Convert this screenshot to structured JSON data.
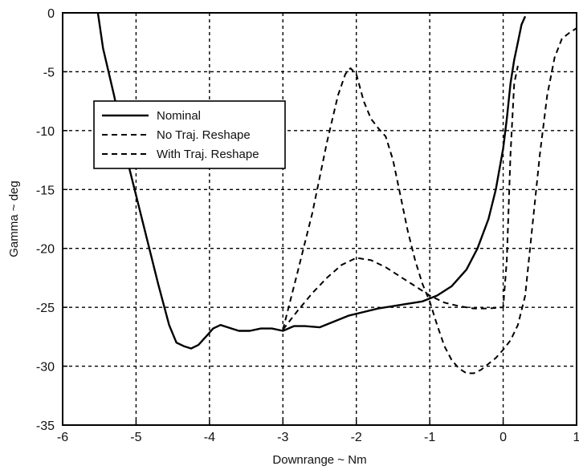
{
  "chart_data": {
    "type": "line",
    "title": "",
    "xlabel": "Downrange ~ Nm",
    "ylabel": "Gamma ~ deg",
    "xlim": [
      -6,
      1
    ],
    "ylim": [
      -35,
      0
    ],
    "xticks": [
      -6,
      -5,
      -4,
      -3,
      -2,
      -1,
      0,
      1
    ],
    "yticks": [
      0,
      -5,
      -10,
      -15,
      -20,
      -25,
      -30,
      -35
    ],
    "grid": true,
    "legend_position": "upper-left",
    "series": [
      {
        "name": "Nominal",
        "style": "solid",
        "x": [
          -5.52,
          -5.45,
          -5.3,
          -5.1,
          -4.9,
          -4.7,
          -4.55,
          -4.45,
          -4.35,
          -4.25,
          -4.15,
          -4.05,
          -3.95,
          -3.85,
          -3.75,
          -3.6,
          -3.45,
          -3.3,
          -3.15,
          -3.0,
          -2.85,
          -2.7,
          -2.5,
          -2.3,
          -2.1,
          -1.9,
          -1.7,
          -1.5,
          -1.3,
          -1.1,
          -0.9,
          -0.7,
          -0.5,
          -0.35,
          -0.2,
          -0.1,
          0.0,
          0.05,
          0.1,
          0.15,
          0.2,
          0.25,
          0.3
        ],
        "y": [
          0,
          -3,
          -7,
          -13,
          -18,
          -23,
          -26.5,
          -28,
          -28.3,
          -28.5,
          -28.2,
          -27.5,
          -26.8,
          -26.5,
          -26.7,
          -27.0,
          -27.0,
          -26.8,
          -26.8,
          -27.0,
          -26.6,
          -26.6,
          -26.7,
          -26.2,
          -25.7,
          -25.4,
          -25.1,
          -24.9,
          -24.7,
          -24.5,
          -24.0,
          -23.2,
          -21.8,
          -20.0,
          -17.5,
          -15.0,
          -11.5,
          -9.0,
          -6.0,
          -4.0,
          -2.5,
          -1.0,
          -0.3
        ]
      },
      {
        "name": "No Traj. Reshape",
        "style": "dashed",
        "x": [
          -3.0,
          -2.8,
          -2.6,
          -2.4,
          -2.2,
          -2.0,
          -1.8,
          -1.6,
          -1.4,
          -1.2,
          -1.0,
          -0.8,
          -0.6,
          -0.4,
          -0.2,
          0.0,
          0.05,
          0.1,
          0.15,
          0.2
        ],
        "y": [
          -26.9,
          -25.3,
          -23.8,
          -22.5,
          -21.4,
          -20.8,
          -21.0,
          -21.6,
          -22.4,
          -23.2,
          -24.0,
          -24.6,
          -24.9,
          -25.1,
          -25.1,
          -25.0,
          -21.0,
          -12.0,
          -6.0,
          -4.5
        ]
      },
      {
        "name": "With Traj. Reshape",
        "style": "dashed",
        "x": [
          -3.0,
          -2.8,
          -2.6,
          -2.4,
          -2.25,
          -2.15,
          -2.08,
          -2.0,
          -1.9,
          -1.8,
          -1.7,
          -1.6,
          -1.5,
          -1.4,
          -1.3,
          -1.2,
          -1.1,
          -1.0,
          -0.9,
          -0.8,
          -0.7,
          -0.6,
          -0.5,
          -0.4,
          -0.3,
          -0.2,
          -0.1,
          0.0,
          0.1,
          0.2,
          0.3,
          0.4,
          0.5,
          0.6,
          0.7,
          0.8,
          0.9,
          1.0
        ],
        "y": [
          -26.9,
          -22.0,
          -17.0,
          -11.0,
          -7.0,
          -5.2,
          -4.7,
          -5.2,
          -7.5,
          -9.0,
          -9.8,
          -10.5,
          -12.5,
          -15.5,
          -18.5,
          -21.0,
          -23.0,
          -24.5,
          -26.5,
          -28.3,
          -29.5,
          -30.2,
          -30.6,
          -30.6,
          -30.3,
          -29.8,
          -29.3,
          -28.6,
          -27.8,
          -26.5,
          -24.0,
          -18.0,
          -12.0,
          -7.0,
          -3.8,
          -2.2,
          -1.7,
          -1.3
        ]
      }
    ]
  }
}
